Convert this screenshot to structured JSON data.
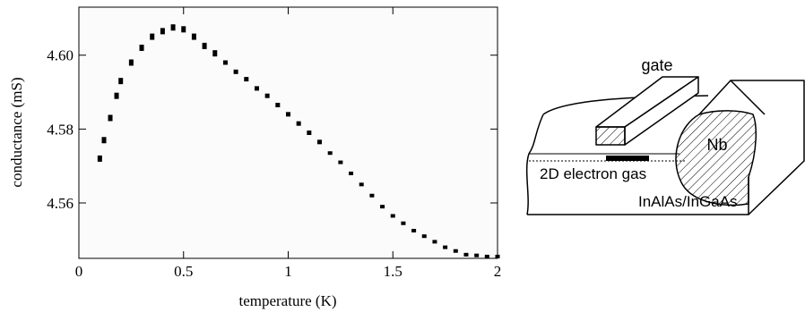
{
  "chart_data": {
    "type": "scatter",
    "xlabel": "temperature (K)",
    "ylabel": "conductance (mS)",
    "xlim": [
      0,
      2
    ],
    "ylim": [
      4.545,
      4.613
    ],
    "x_ticks": [
      {
        "value": 0,
        "label": "0"
      },
      {
        "value": 0.5,
        "label": "0.5"
      },
      {
        "value": 1,
        "label": "1"
      },
      {
        "value": 1.5,
        "label": "1.5"
      },
      {
        "value": 2,
        "label": "2"
      }
    ],
    "y_ticks": [
      {
        "value": 4.56,
        "label": "4.56"
      },
      {
        "value": 4.58,
        "label": "4.58"
      },
      {
        "value": 4.6,
        "label": "4.60"
      }
    ],
    "grid": false,
    "series": [
      {
        "color": "#000000",
        "x": [
          0.1,
          0.12,
          0.15,
          0.18,
          0.2,
          0.25,
          0.3,
          0.35,
          0.4,
          0.45,
          0.5,
          0.55,
          0.6,
          0.65,
          0.7,
          0.75,
          0.8,
          0.85,
          0.9,
          0.95,
          1.0,
          1.05,
          1.1,
          1.15,
          1.2,
          1.25,
          1.3,
          1.35,
          1.4,
          1.45,
          1.5,
          1.55,
          1.6,
          1.65,
          1.7,
          1.75,
          1.8,
          1.85,
          1.9,
          1.95,
          2.0
        ],
        "y": [
          4.572,
          4.577,
          4.583,
          4.589,
          4.593,
          4.598,
          4.602,
          4.605,
          4.6065,
          4.6075,
          4.607,
          4.605,
          4.6025,
          4.6005,
          4.598,
          4.5955,
          4.5935,
          4.591,
          4.589,
          4.5865,
          4.584,
          4.5815,
          4.579,
          4.5765,
          4.5735,
          4.571,
          4.568,
          4.565,
          4.562,
          4.559,
          4.5565,
          4.5545,
          4.5525,
          4.551,
          4.5495,
          4.548,
          4.547,
          4.546,
          4.5458,
          4.5455,
          4.5455
        ]
      }
    ]
  },
  "schematic": {
    "labels": {
      "gate": "gate",
      "nb": "Nb",
      "electron_gas": "2D electron gas",
      "substrate": "InAlAs/InGaAs"
    }
  }
}
